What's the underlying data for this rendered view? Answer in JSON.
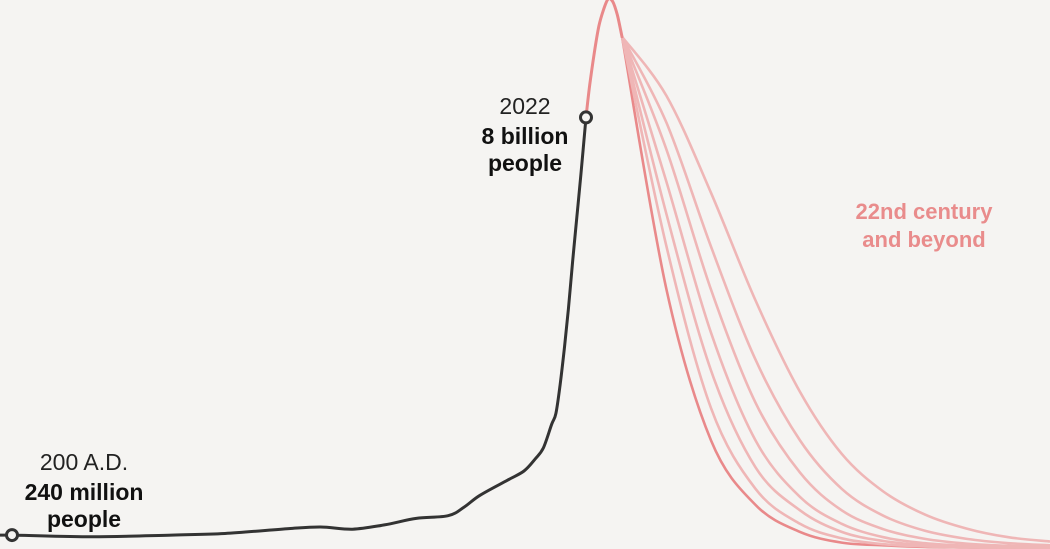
{
  "chart_data": {
    "type": "line",
    "title": "",
    "xlabel": "",
    "ylabel": "",
    "colors": {
      "background": "#f5f4f2",
      "history": "#333333",
      "projection": "#e9898a",
      "projection_faint": "#efb6b6",
      "label_future": "#e98c8c"
    },
    "xlim": [
      0,
      2600
    ],
    "ylim": [
      0,
      10.2
    ],
    "y_unit": "billion people",
    "series": [
      {
        "role": "history",
        "x": [
          0,
          200,
          500,
          800,
          1000,
          1200,
          1300,
          1400,
          1500,
          1600,
          1700,
          1750,
          1800,
          1850,
          1880,
          1900,
          1920,
          1940,
          1950,
          1960,
          1970,
          1980,
          1990,
          2000,
          2010,
          2022
        ],
        "y": [
          0.23,
          0.24,
          0.21,
          0.24,
          0.27,
          0.36,
          0.39,
          0.35,
          0.43,
          0.55,
          0.6,
          0.76,
          0.98,
          1.26,
          1.43,
          1.65,
          1.86,
          2.3,
          2.5,
          3.03,
          3.7,
          4.44,
          5.32,
          6.14,
          6.96,
          8.0
        ]
      },
      {
        "role": "peak",
        "x": [
          2022,
          2030,
          2040,
          2050,
          2060,
          2070,
          2080,
          2090,
          2100
        ],
        "y": [
          8.0,
          8.6,
          9.2,
          9.7,
          10.0,
          10.2,
          10.15,
          9.9,
          9.5
        ]
      },
      {
        "role": "projection",
        "x": [
          2100,
          2150,
          2200,
          2250,
          2300,
          2350,
          2400,
          2450,
          2500,
          2550,
          2600
        ],
        "y": [
          9.5,
          4.8,
          2.0,
          0.8,
          0.3,
          0.1,
          0.05,
          0.02,
          0.01,
          0.0,
          0.0
        ]
      },
      {
        "role": "projection",
        "x": [
          2100,
          2150,
          2200,
          2250,
          2300,
          2350,
          2400,
          2450,
          2500,
          2550,
          2600
        ],
        "y": [
          9.5,
          5.6,
          2.6,
          1.1,
          0.45,
          0.18,
          0.07,
          0.03,
          0.01,
          0.0,
          0.0
        ]
      },
      {
        "role": "projection",
        "x": [
          2100,
          2150,
          2200,
          2250,
          2300,
          2350,
          2400,
          2450,
          2500,
          2550,
          2600
        ],
        "y": [
          9.5,
          6.2,
          3.3,
          1.5,
          0.7,
          0.3,
          0.13,
          0.05,
          0.02,
          0.01,
          0.0
        ]
      },
      {
        "role": "projection",
        "x": [
          2100,
          2150,
          2200,
          2250,
          2300,
          2350,
          2400,
          2450,
          2500,
          2550,
          2600
        ],
        "y": [
          9.5,
          6.8,
          4.0,
          2.0,
          0.95,
          0.45,
          0.2,
          0.09,
          0.04,
          0.02,
          0.01
        ]
      },
      {
        "role": "projection",
        "x": [
          2100,
          2150,
          2200,
          2250,
          2300,
          2350,
          2400,
          2450,
          2500,
          2550,
          2600
        ],
        "y": [
          9.5,
          7.4,
          4.8,
          2.7,
          1.4,
          0.7,
          0.35,
          0.17,
          0.08,
          0.04,
          0.02
        ]
      },
      {
        "role": "projection",
        "x": [
          2100,
          2150,
          2200,
          2250,
          2300,
          2350,
          2400,
          2450,
          2500,
          2550,
          2600
        ],
        "y": [
          9.5,
          7.9,
          5.6,
          3.5,
          2.0,
          1.1,
          0.6,
          0.32,
          0.17,
          0.09,
          0.05
        ]
      },
      {
        "role": "projection",
        "x": [
          2100,
          2150,
          2200,
          2250,
          2300,
          2350,
          2400,
          2450,
          2500,
          2550,
          2600
        ],
        "y": [
          9.5,
          8.4,
          6.6,
          4.6,
          2.9,
          1.75,
          1.05,
          0.62,
          0.36,
          0.2,
          0.12
        ]
      }
    ],
    "annotations": [
      {
        "id": "start",
        "x": 200,
        "y": 0.24,
        "year_label": "200 A.D.",
        "value_label": [
          "240 million",
          "people"
        ]
      },
      {
        "id": "now",
        "x": 2022,
        "y": 8.0,
        "year_label": "2022",
        "value_label": [
          "8 billion",
          "people"
        ]
      }
    ],
    "future_label": [
      "22nd century",
      "and beyond"
    ],
    "grid": false,
    "legend": "none"
  }
}
